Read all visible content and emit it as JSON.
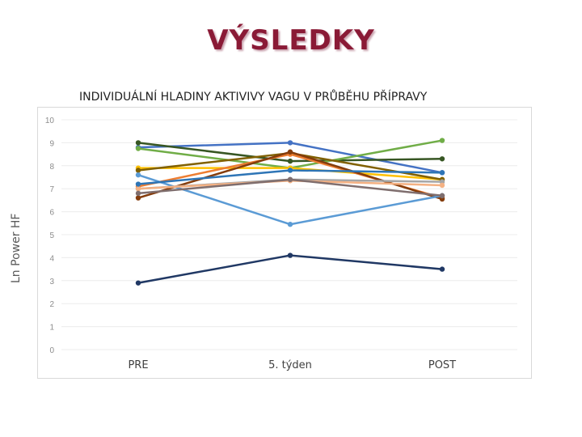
{
  "slide": {
    "title": "VÝSLEDKY"
  },
  "chart_data": {
    "type": "line",
    "title": "INDIVIDUÁLNÍ HLADINY AKTIVIVY VAGU V PRŮBĚHU PŘÍPRAVY",
    "xlabel": "",
    "ylabel": "Ln Power HF",
    "categories": [
      "PRE",
      "5. týden",
      "POST"
    ],
    "ylim": [
      0,
      10
    ],
    "yticks": [
      0,
      1,
      2,
      3,
      4,
      5,
      6,
      7,
      8,
      9,
      10
    ],
    "grid": true,
    "legend": "none",
    "series": [
      {
        "color": "#4472c4",
        "values": [
          8.8,
          9.0,
          7.7
        ]
      },
      {
        "color": "#375623",
        "values": [
          9.0,
          8.2,
          8.3
        ]
      },
      {
        "color": "#70ad47",
        "values": [
          8.75,
          7.9,
          9.1
        ]
      },
      {
        "color": "#ffc000",
        "values": [
          7.9,
          7.9,
          7.4
        ]
      },
      {
        "color": "#806000",
        "values": [
          7.8,
          8.55,
          7.4
        ]
      },
      {
        "color": "#ed7d31",
        "values": [
          7.1,
          8.5,
          6.6
        ]
      },
      {
        "color": "#843c0c",
        "values": [
          6.6,
          8.6,
          6.55
        ]
      },
      {
        "color": "#5b9bd5",
        "values": [
          7.6,
          5.45,
          6.7
        ]
      },
      {
        "color": "#a5a5a5",
        "values": [
          7.0,
          7.4,
          7.3
        ]
      },
      {
        "color": "#f4b183",
        "values": [
          7.0,
          7.35,
          7.15
        ]
      },
      {
        "color": "#2e75b6",
        "values": [
          7.2,
          7.8,
          7.7
        ]
      },
      {
        "color": "#7f6e6e",
        "values": [
          6.8,
          7.4,
          6.7
        ]
      },
      {
        "color": "#203864",
        "values": [
          2.9,
          4.1,
          3.5
        ]
      }
    ]
  }
}
